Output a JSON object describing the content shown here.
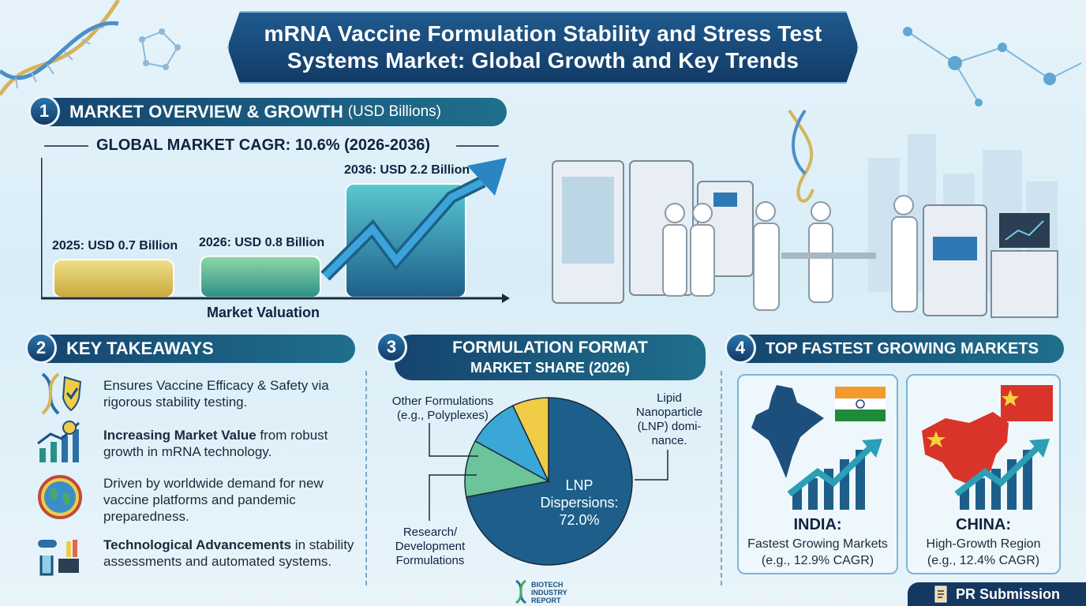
{
  "title": {
    "line1": "mRNA Vaccine Formulation Stability and Stress Test",
    "line2": "Systems Market: Global Growth and Key Trends"
  },
  "section1": {
    "number": "1",
    "title": "MARKET OVERVIEW & GROWTH",
    "unit": "(USD Billions)",
    "cagr": "GLOBAL MARKET CAGR: 10.6% (2026-2036)",
    "xlabel": "Market Valuation"
  },
  "section2": {
    "number": "2",
    "title": "KEY TAKEAWAYS",
    "items": [
      {
        "icon": "dna-shield-icon",
        "bold": "",
        "text": "Ensures Vaccine Efficacy & Safety via rigorous stability testing."
      },
      {
        "icon": "growth-chart-icon",
        "bold": "Increasing Market Value",
        "text": " from robust growth in mRNA technology."
      },
      {
        "icon": "globe-icon",
        "bold": "",
        "text": "Driven by worldwide demand for new vaccine platforms and pandemic preparedness."
      },
      {
        "icon": "lab-equipment-icon",
        "bold": "Technological Advancements",
        "text": " in stability assessments and automated systems."
      }
    ]
  },
  "section3": {
    "number": "3",
    "title_line1": "FORMULATION FORMAT",
    "title_line2": "MARKET SHARE (2026)",
    "labels": {
      "other": "Other Formulations (e.g., Polyplexes)",
      "lipid": "Lipid Nanoparticle (LNP) domi-nance.",
      "research": "Research/ Development Formulations",
      "lnp_name": "LNP Dispersions:",
      "lnp_value": "72.0%"
    },
    "logo": [
      "BIOTECH",
      "INDUSTRY",
      "REPORT"
    ]
  },
  "section4": {
    "number": "4",
    "title": "TOP FASTEST GROWING MARKETS",
    "markets": [
      {
        "name": "INDIA:",
        "line1": "Fastest Growing Markets",
        "line2": "(e.g., 12.9% CAGR)"
      },
      {
        "name": "CHINA:",
        "line1": "High-Growth Region",
        "line2": "(e.g., 12.4% CAGR)"
      }
    ]
  },
  "pr_button": "PR Submission",
  "chart_data": [
    {
      "type": "bar",
      "title": "GLOBAL MARKET CAGR: 10.6% (2026-2036)",
      "xlabel": "Market Valuation",
      "ylabel": "",
      "categories": [
        "2025",
        "2026",
        "2036"
      ],
      "values": [
        0.7,
        0.8,
        2.2
      ],
      "labels": [
        "2025: USD 0.7 Billion",
        "2026: USD 0.8 Billion",
        "2036: USD 2.2 Billion"
      ],
      "colors": [
        "#d8c24a",
        "#4fb28a",
        "#2a9fb5"
      ]
    },
    {
      "type": "pie",
      "title": "FORMULATION FORMAT MARKET SHARE (2026)",
      "slices": [
        {
          "label": "LNP Dispersions",
          "value": 72.0,
          "color": "#1d5f8a"
        },
        {
          "label": "Research/ Development Formulations",
          "value": 11.0,
          "color": "#6cc49a"
        },
        {
          "label": "Other Formulations (e.g., Polyplexes)",
          "value": 10.0,
          "color": "#3aa7d6"
        },
        {
          "label": "Other",
          "value": 7.0,
          "color": "#f0cc47"
        }
      ]
    }
  ]
}
